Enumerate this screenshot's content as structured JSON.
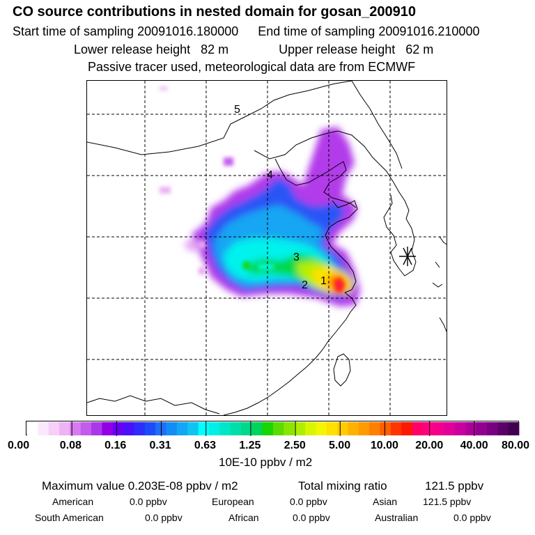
{
  "title": "CO  source contributions in nested domain for gosan_200910",
  "sampling": {
    "start": "Start time of sampling 20091016.180000",
    "end": "End time of sampling 20091016.210000"
  },
  "release": {
    "lower": "Lower release height   82 m",
    "upper": "Upper release height   62 m"
  },
  "tracer_note": "Passive tracer used, meteorological data are from ECMWF",
  "map": {
    "source_labels": [
      "1",
      "2",
      "3",
      "4",
      "5"
    ],
    "receptor_icon": "asterisk-receptor-icon"
  },
  "colorbar": {
    "ticks": [
      "0.00",
      "0.08",
      "0.16",
      "0.31",
      "0.63",
      "1.25",
      "2.50",
      "5.00",
      "10.00",
      "20.00",
      "40.00",
      "80.00"
    ],
    "colors": [
      "#ffffff",
      "#fce8fc",
      "#f7cff7",
      "#eeb3f5",
      "#d77bf0",
      "#c15ceb",
      "#aa37e8",
      "#9200e6",
      "#6a00f5",
      "#4a10fa",
      "#2f2dfa",
      "#1e4bf8",
      "#1e6ef7",
      "#148cf5",
      "#12a7f4",
      "#10c3f0",
      "#00ffff",
      "#00f0e6",
      "#00e6c8",
      "#00dfaa",
      "#00d98a",
      "#00d45a",
      "#19d500",
      "#5adc00",
      "#8ae500",
      "#b0ee00",
      "#d8f500",
      "#f3f600",
      "#ffe000",
      "#ffcb00",
      "#ffb100",
      "#ff9a00",
      "#ff7f00",
      "#ff5f00",
      "#ff3500",
      "#ff1800",
      "#ff0066",
      "#ff0080",
      "#f3008c",
      "#e0009a",
      "#c800a0",
      "#ad0099",
      "#920090",
      "#780080",
      "#5b0066",
      "#400050"
    ],
    "units": "10E-10 ppbv / m2"
  },
  "stats": {
    "max_label": "Maximum value  0.203E-08 ppbv / m2",
    "total_label": "Total mixing ratio",
    "total_value": "121.5 ppbv",
    "regions": [
      {
        "name": "American",
        "value": "0.0 ppbv"
      },
      {
        "name": "European",
        "value": "0.0 ppbv"
      },
      {
        "name": "Asian",
        "value": "121.5 ppbv"
      },
      {
        "name": "South American",
        "value": "0.0 ppbv"
      },
      {
        "name": "African",
        "value": "0.0 ppbv"
      },
      {
        "name": "Australian",
        "value": "0.0 ppbv"
      }
    ]
  }
}
